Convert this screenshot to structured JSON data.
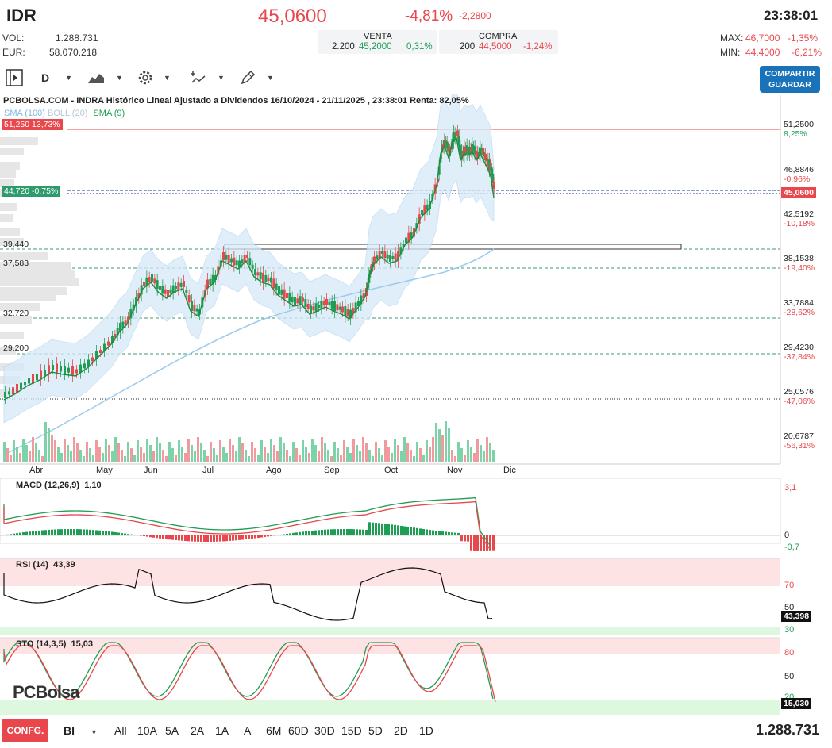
{
  "header": {
    "ticker": "IDR",
    "price": "45,0600",
    "change_pct": "-4,81%",
    "change_abs": "-2,2800",
    "time": "23:38:01"
  },
  "stats": {
    "vol_label": "VOL:",
    "vol_value": "1.288.731",
    "eur_label": "EUR:",
    "eur_value": "58.070.218",
    "max_label": "MAX:",
    "max_value": "46,7000",
    "max_pct": "-1,35%",
    "min_label": "MIN:",
    "min_value": "44,4000",
    "min_pct": "-6,21%"
  },
  "orderbook": {
    "venta_label": "VENTA",
    "venta_qty": "2.200",
    "venta_price": "45,2000",
    "venta_pct": "0,31%",
    "compra_label": "COMPRA",
    "compra_qty": "200",
    "compra_price": "44,5000",
    "compra_pct": "-1,24%"
  },
  "toolbar": {
    "period": "D",
    "share_label_1": "COMPARTIR",
    "share_label_2": "GUARDAR"
  },
  "chart": {
    "title": "PCBOLSA.COM - INDRA Histórico Lineal Ajustado a Dividendos 16/10/2024 - 21/11/2025 , 23:38:01 Renta: 82,05%",
    "legend_sma100": "SMA (100)",
    "legend_boll": "BOLL (20)",
    "legend_sma9": "SMA (9)",
    "tag_high": "51,250  13,73%",
    "tag_mid": "44,720  -0,75%",
    "tag_price": "45,0600",
    "left_levels": [
      "39,440",
      "37,583",
      "32,720",
      "29,200"
    ],
    "right_levels": [
      {
        "value": "51,2500",
        "pct": "8,25%",
        "pct_color": "green"
      },
      {
        "value": "46,8846",
        "pct": "-0,96%",
        "pct_color": "red"
      },
      {
        "value": "42,5192",
        "pct": "-10,18%",
        "pct_color": "red"
      },
      {
        "value": "38,1538",
        "pct": "-19,40%",
        "pct_color": "red"
      },
      {
        "value": "33,7884",
        "pct": "-28,62%",
        "pct_color": "red"
      },
      {
        "value": "29,4230",
        "pct": "-37,84%",
        "pct_color": "red"
      },
      {
        "value": "25,0576",
        "pct": "-47,06%",
        "pct_color": "red"
      },
      {
        "value": "20,6787",
        "pct": "-56,31%",
        "pct_color": "red"
      }
    ],
    "months": [
      "Abr",
      "May",
      "Jun",
      "Jul",
      "Ago",
      "Sep",
      "Oct",
      "Nov",
      "Dic"
    ]
  },
  "macd": {
    "label": "MACD (12,26,9)",
    "value": "1,10",
    "axis_top": "3,1",
    "axis_zero": "0",
    "axis_val": "-0,7"
  },
  "rsi": {
    "label": "RSI (14)",
    "value": "43,39",
    "axis_70": "70",
    "axis_50": "50",
    "axis_30": "30",
    "tag": "43,398"
  },
  "sto": {
    "label": "STO (14,3,5)",
    "value": "15,03",
    "axis_80": "80",
    "axis_50": "50",
    "axis_20": "20",
    "tag": "15,030"
  },
  "watermark": "PCBolsa",
  "bottom": {
    "confg": "CONFG.",
    "bi": "BI",
    "ranges": [
      "All",
      "10A",
      "5A",
      "2A",
      "1A",
      "A",
      "6M",
      "60D",
      "30D",
      "15D",
      "5D",
      "2D",
      "1D"
    ],
    "volume": "1.288.731"
  },
  "colors": {
    "up": "#1f9d55",
    "down": "#e8474c",
    "accent": "#1a72b8"
  }
}
